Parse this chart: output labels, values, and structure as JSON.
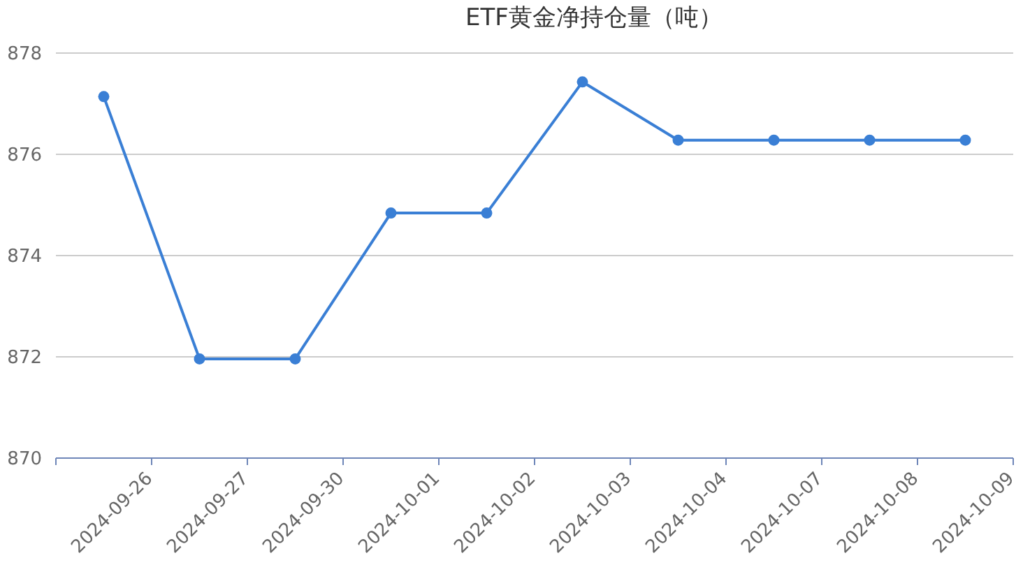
{
  "chart_data": {
    "type": "line",
    "title": "ETF黄金净持仓量（吨）",
    "categories": [
      "2024-09-26",
      "2024-09-27",
      "2024-09-30",
      "2024-10-01",
      "2024-10-02",
      "2024-10-03",
      "2024-10-04",
      "2024-10-07",
      "2024-10-08",
      "2024-10-09"
    ],
    "series": [
      {
        "color": "#3a7fd5",
        "values": [
          877.14,
          871.96,
          871.96,
          874.84,
          874.84,
          877.43,
          876.28,
          876.28,
          876.28,
          876.28
        ]
      }
    ],
    "ylim": [
      870,
      878
    ],
    "yticks": [
      870,
      872,
      874,
      876,
      878
    ],
    "grid": "y",
    "marker": "circle",
    "line_style": "solid"
  }
}
